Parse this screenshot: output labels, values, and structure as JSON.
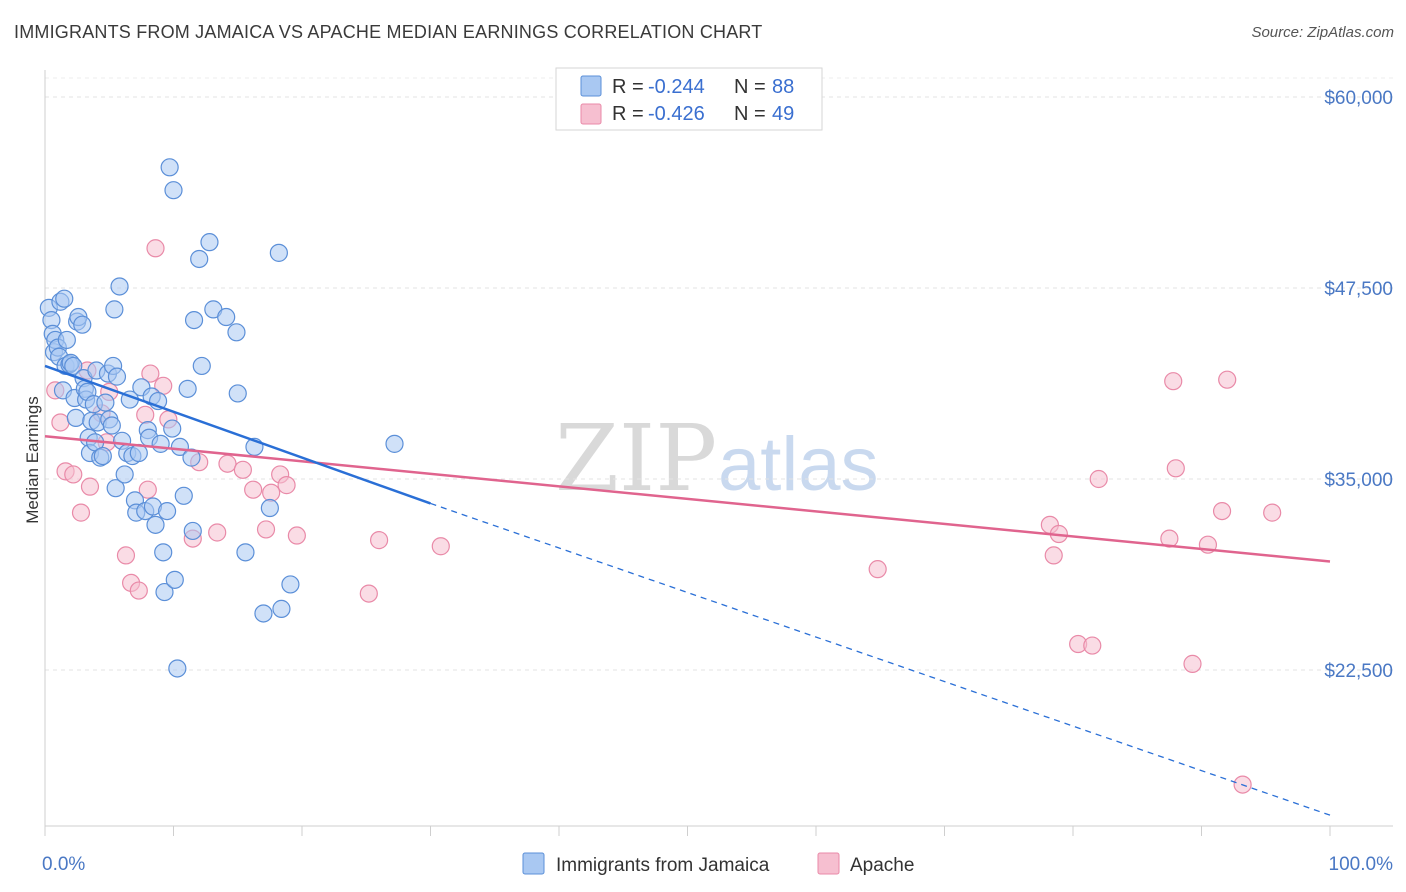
{
  "title": "IMMIGRANTS FROM JAMAICA VS APACHE MEDIAN EARNINGS CORRELATION CHART",
  "source": "Source: ZipAtlas.com",
  "colors": {
    "jamaica_fill": "#a9c8f2",
    "jamaica_stroke": "#5b8fd8",
    "jamaica_line": "#2a6fd6",
    "apache_fill": "#f6bfd0",
    "apache_stroke": "#e98aa8",
    "apache_line": "#e0648e",
    "tick_color": "#4a78c4"
  },
  "legend": {
    "row1": {
      "r_label": "R = ",
      "r_value": "-0.244",
      "n_label": "N = ",
      "n_value": "88"
    },
    "row2": {
      "r_label": "R = ",
      "r_value": "-0.426",
      "n_label": "N = ",
      "n_value": "49"
    }
  },
  "watermark": {
    "zip": "ZIP",
    "atlas": "atlas"
  },
  "chart_data": {
    "type": "scatter",
    "xlabel": "",
    "ylabel": "Median Earnings",
    "xlim": [
      0,
      100
    ],
    "ylim": [
      10000,
      62000
    ],
    "x_tick_labels": [
      "0.0%",
      "100.0%"
    ],
    "y_ticks": [
      22500,
      35000,
      47500,
      60000
    ],
    "y_tick_labels": [
      "$22,500",
      "$35,000",
      "$47,500",
      "$60,000"
    ],
    "grid": true,
    "legend_position": "top-center",
    "series": [
      {
        "name": "Immigrants from Jamaica",
        "points": [
          [
            0.3,
            46.2
          ],
          [
            0.5,
            45.4
          ],
          [
            0.6,
            44.5
          ],
          [
            0.7,
            43.3
          ],
          [
            0.8,
            44.1
          ],
          [
            1.0,
            43.6
          ],
          [
            1.1,
            43.0
          ],
          [
            1.2,
            46.6
          ],
          [
            1.4,
            40.8
          ],
          [
            1.5,
            46.8
          ],
          [
            1.6,
            42.4
          ],
          [
            1.7,
            44.1
          ],
          [
            1.9,
            42.5
          ],
          [
            2.0,
            42.6
          ],
          [
            2.2,
            42.4
          ],
          [
            2.3,
            40.3
          ],
          [
            2.4,
            39.0
          ],
          [
            2.5,
            45.3
          ],
          [
            2.6,
            45.6
          ],
          [
            2.9,
            45.1
          ],
          [
            3.0,
            41.6
          ],
          [
            3.1,
            40.9
          ],
          [
            3.2,
            40.2
          ],
          [
            3.3,
            40.7
          ],
          [
            3.4,
            37.7
          ],
          [
            3.5,
            36.7
          ],
          [
            3.6,
            38.8
          ],
          [
            3.8,
            39.9
          ],
          [
            3.9,
            37.4
          ],
          [
            4.0,
            42.1
          ],
          [
            4.1,
            38.7
          ],
          [
            4.3,
            36.4
          ],
          [
            4.5,
            36.5
          ],
          [
            4.7,
            40.0
          ],
          [
            4.9,
            41.9
          ],
          [
            5.0,
            38.9
          ],
          [
            5.2,
            38.5
          ],
          [
            5.3,
            42.4
          ],
          [
            5.4,
            46.1
          ],
          [
            5.5,
            34.4
          ],
          [
            5.6,
            41.7
          ],
          [
            5.8,
            47.6
          ],
          [
            6.0,
            37.5
          ],
          [
            6.2,
            35.3
          ],
          [
            6.4,
            36.7
          ],
          [
            6.6,
            40.2
          ],
          [
            6.8,
            36.5
          ],
          [
            7.0,
            33.6
          ],
          [
            7.1,
            32.8
          ],
          [
            7.3,
            36.7
          ],
          [
            7.5,
            41.0
          ],
          [
            7.8,
            32.9
          ],
          [
            8.0,
            38.2
          ],
          [
            8.1,
            37.7
          ],
          [
            8.3,
            40.4
          ],
          [
            8.4,
            33.2
          ],
          [
            8.6,
            32.0
          ],
          [
            8.8,
            40.1
          ],
          [
            9.0,
            37.3
          ],
          [
            9.2,
            30.2
          ],
          [
            9.3,
            27.6
          ],
          [
            9.5,
            32.9
          ],
          [
            9.7,
            55.4
          ],
          [
            9.9,
            38.3
          ],
          [
            10.0,
            53.9
          ],
          [
            10.1,
            28.4
          ],
          [
            10.3,
            22.6
          ],
          [
            10.5,
            37.1
          ],
          [
            10.8,
            33.9
          ],
          [
            11.1,
            40.9
          ],
          [
            11.4,
            36.4
          ],
          [
            11.5,
            31.6
          ],
          [
            11.6,
            45.4
          ],
          [
            12.0,
            49.4
          ],
          [
            12.2,
            42.4
          ],
          [
            12.8,
            50.5
          ],
          [
            13.1,
            46.1
          ],
          [
            14.1,
            45.6
          ],
          [
            14.9,
            44.6
          ],
          [
            15.0,
            40.6
          ],
          [
            15.6,
            30.2
          ],
          [
            16.3,
            37.1
          ],
          [
            17.0,
            26.2
          ],
          [
            17.5,
            33.1
          ],
          [
            18.2,
            49.8
          ],
          [
            18.4,
            26.5
          ],
          [
            19.1,
            28.1
          ],
          [
            27.2,
            37.3
          ]
        ],
        "trend_solid": [
          [
            0.0,
            42.4
          ],
          [
            30.0,
            33.4
          ]
        ],
        "trend_dashed": [
          [
            30.0,
            33.4
          ],
          [
            100.0,
            13.0
          ]
        ]
      },
      {
        "name": "Apache",
        "points": [
          [
            0.8,
            40.8
          ],
          [
            1.2,
            38.7
          ],
          [
            1.6,
            35.5
          ],
          [
            2.2,
            35.3
          ],
          [
            2.8,
            32.8
          ],
          [
            3.3,
            42.1
          ],
          [
            3.5,
            34.5
          ],
          [
            4.4,
            39.3
          ],
          [
            4.8,
            37.4
          ],
          [
            5.0,
            40.7
          ],
          [
            6.3,
            30.0
          ],
          [
            6.7,
            28.2
          ],
          [
            7.3,
            27.7
          ],
          [
            7.8,
            39.2
          ],
          [
            8.0,
            34.3
          ],
          [
            8.2,
            41.9
          ],
          [
            8.6,
            50.1
          ],
          [
            9.2,
            41.1
          ],
          [
            9.6,
            38.9
          ],
          [
            11.5,
            31.1
          ],
          [
            12.0,
            36.1
          ],
          [
            13.4,
            31.5
          ],
          [
            14.2,
            36.0
          ],
          [
            15.4,
            35.6
          ],
          [
            16.2,
            34.3
          ],
          [
            17.2,
            31.7
          ],
          [
            17.6,
            34.1
          ],
          [
            18.3,
            35.3
          ],
          [
            18.8,
            34.6
          ],
          [
            19.6,
            31.3
          ],
          [
            25.2,
            27.5
          ],
          [
            26.0,
            31.0
          ],
          [
            30.8,
            30.6
          ],
          [
            64.8,
            29.1
          ],
          [
            78.2,
            32.0
          ],
          [
            78.5,
            30.0
          ],
          [
            78.9,
            31.4
          ],
          [
            80.4,
            24.2
          ],
          [
            81.5,
            24.1
          ],
          [
            82.0,
            35.0
          ],
          [
            87.5,
            31.1
          ],
          [
            87.8,
            41.4
          ],
          [
            88.0,
            35.7
          ],
          [
            89.3,
            22.9
          ],
          [
            90.5,
            30.7
          ],
          [
            91.6,
            32.9
          ],
          [
            92.0,
            41.5
          ],
          [
            93.2,
            15.0
          ],
          [
            95.5,
            32.8
          ]
        ],
        "trend_solid": [
          [
            0.0,
            37.8
          ],
          [
            100.0,
            29.6
          ]
        ]
      }
    ]
  }
}
